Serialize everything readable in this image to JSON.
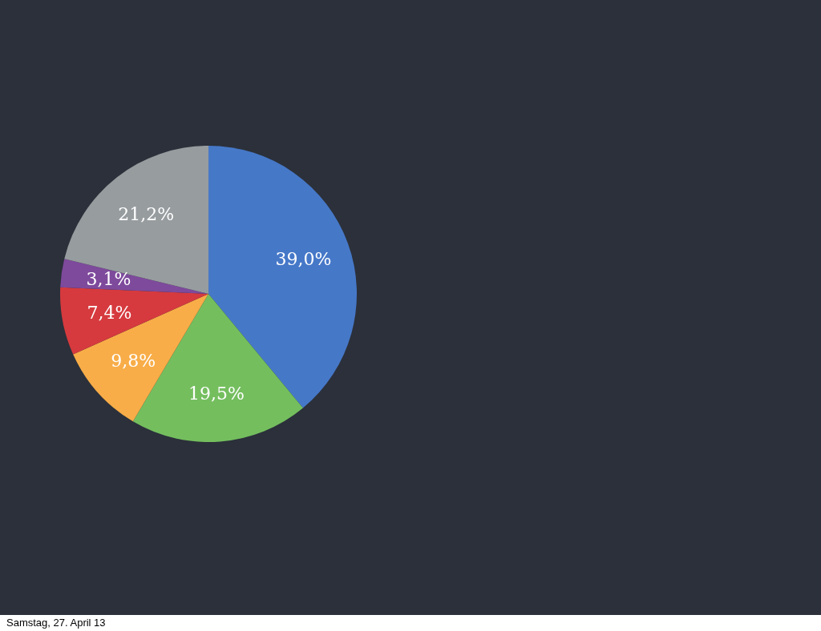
{
  "chart_data": {
    "type": "pie",
    "categories": [
      null,
      null,
      null,
      null,
      null,
      null
    ],
    "values": [
      39.0,
      19.5,
      9.8,
      7.4,
      3.1,
      21.2
    ],
    "colors": [
      "#4678c8",
      "#74be5e",
      "#f8ad48",
      "#d63a3e",
      "#7e4a9c",
      "#979c9f"
    ],
    "value_labels": [
      "39,0%",
      "19,5%",
      "9,8%",
      "7,4%",
      "3,1%",
      "21,2%"
    ],
    "annotations": [
      "Samstag, 27. April 13"
    ]
  }
}
